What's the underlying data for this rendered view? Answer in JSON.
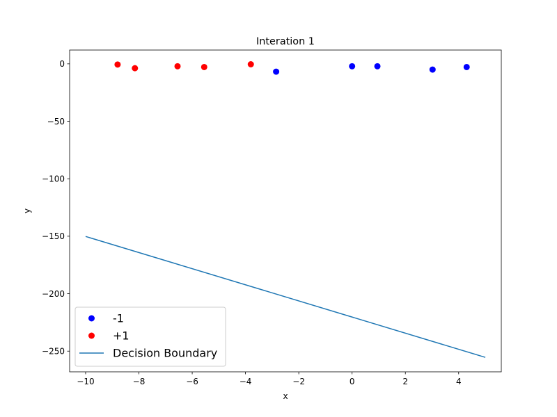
{
  "chart_data": {
    "type": "scatter",
    "title": "Interation 1",
    "xlabel": "x",
    "ylabel": "y",
    "xlim": [
      -10.6,
      5.6
    ],
    "ylim": [
      -268,
      12
    ],
    "grid": false,
    "legend_position": "lower-left",
    "x_ticks": [
      -10,
      -8,
      -6,
      -4,
      -2,
      0,
      2,
      4
    ],
    "x_tick_labels": [
      "−10",
      "−8",
      "−6",
      "−4",
      "−2",
      "0",
      "2",
      "4"
    ],
    "y_ticks": [
      0,
      -50,
      -100,
      -150,
      -200,
      -250
    ],
    "y_tick_labels": [
      "0",
      "−50",
      "−100",
      "−150",
      "−200",
      "−250"
    ],
    "series": [
      {
        "name": "-1",
        "kind": "scatter",
        "color": "#0000ff",
        "points": [
          [
            -2.85,
            -6.8
          ],
          [
            0.0,
            -2.1
          ],
          [
            0.95,
            -2.1
          ],
          [
            3.02,
            -5.0
          ],
          [
            4.3,
            -2.8
          ]
        ]
      },
      {
        "name": "+1",
        "kind": "scatter",
        "color": "#ff0000",
        "points": [
          [
            -8.8,
            -0.6
          ],
          [
            -8.15,
            -3.8
          ],
          [
            -6.55,
            -2.1
          ],
          [
            -5.55,
            -2.8
          ],
          [
            -3.8,
            -0.4
          ]
        ]
      },
      {
        "name": "Decision Boundary",
        "kind": "line",
        "color": "#1f77b4",
        "points": [
          [
            -10,
            -150.2
          ],
          [
            5,
            -255.4
          ]
        ]
      }
    ]
  }
}
